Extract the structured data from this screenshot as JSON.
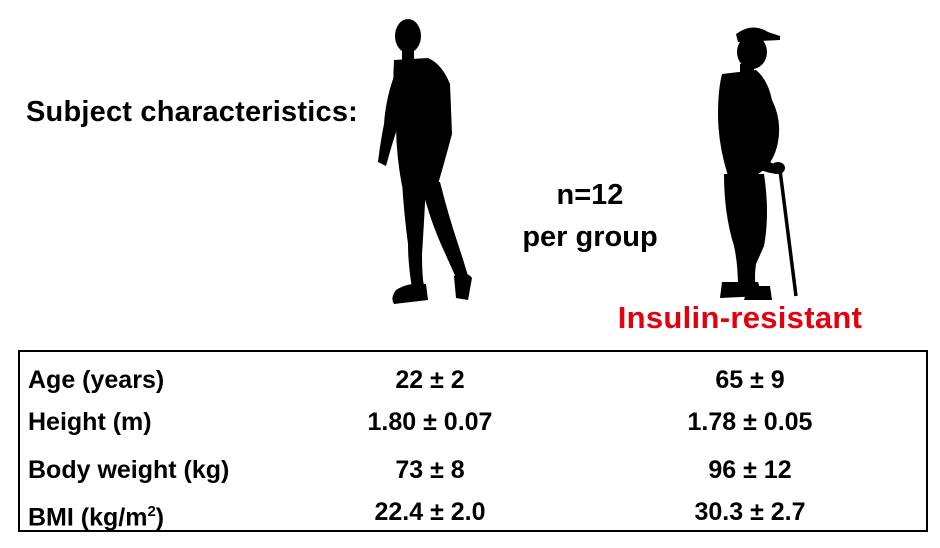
{
  "title": "Subject characteristics:",
  "group_size": {
    "line1": "n=12",
    "line2": "per group"
  },
  "group_labels": {
    "young": "",
    "insulin_resistant": "Insulin-resistant",
    "insulin_resistant_color": "#e3000f"
  },
  "figures": {
    "young": "young-man-walking-silhouette",
    "old": "elderly-man-with-cane-silhouette"
  },
  "table": {
    "rows": [
      {
        "label": "Age (years)",
        "young": "22 ± 2",
        "old": "65 ± 9"
      },
      {
        "label": "Height (m)",
        "young": "1.80 ± 0.07",
        "old": "1.78 ± 0.05"
      },
      {
        "label": "Body weight (kg)",
        "young": "73 ± 8",
        "old": "96 ± 12"
      },
      {
        "label_main": "BMI (kg/m",
        "label_sup": "2",
        "label_end": ")",
        "young": "22.4 ± 2.0",
        "old": "30.3 ± 2.7"
      }
    ]
  }
}
